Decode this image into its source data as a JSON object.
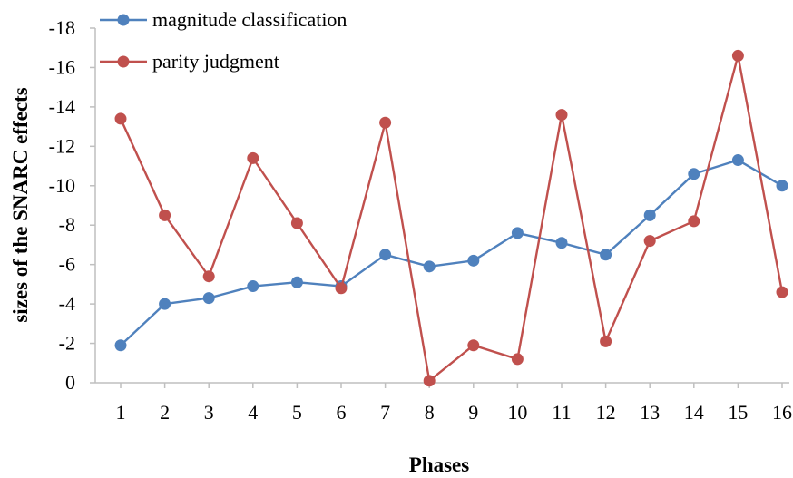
{
  "chart_data": {
    "type": "line",
    "xlabel": "Phases",
    "ylabel": "sizes of the SNARC effects",
    "x": [
      1,
      2,
      3,
      4,
      5,
      6,
      7,
      8,
      9,
      10,
      11,
      12,
      13,
      14,
      15,
      16
    ],
    "ylim": [
      0,
      -18
    ],
    "yticks": [
      0,
      -2,
      -4,
      -6,
      -8,
      -10,
      -12,
      -14,
      -16,
      -18
    ],
    "y_axis_reversed": true,
    "grid": false,
    "legend_position": "top-left",
    "series": [
      {
        "name": "magnitude classification",
        "color": "#4f81bd",
        "marker": "circle",
        "values": [
          -1.9,
          -4.0,
          -4.3,
          -4.9,
          -5.1,
          -4.9,
          -6.5,
          -5.9,
          -6.2,
          -7.6,
          -7.1,
          -6.5,
          -8.5,
          -10.6,
          -11.3,
          -10.0
        ]
      },
      {
        "name": "parity judgment",
        "color": "#c0504d",
        "marker": "circle",
        "values": [
          -13.4,
          -8.5,
          -5.4,
          -11.4,
          -8.1,
          -4.8,
          -13.2,
          -0.1,
          -1.9,
          -1.2,
          -13.6,
          -2.1,
          -7.2,
          -8.2,
          -16.6,
          -4.6
        ]
      }
    ]
  }
}
